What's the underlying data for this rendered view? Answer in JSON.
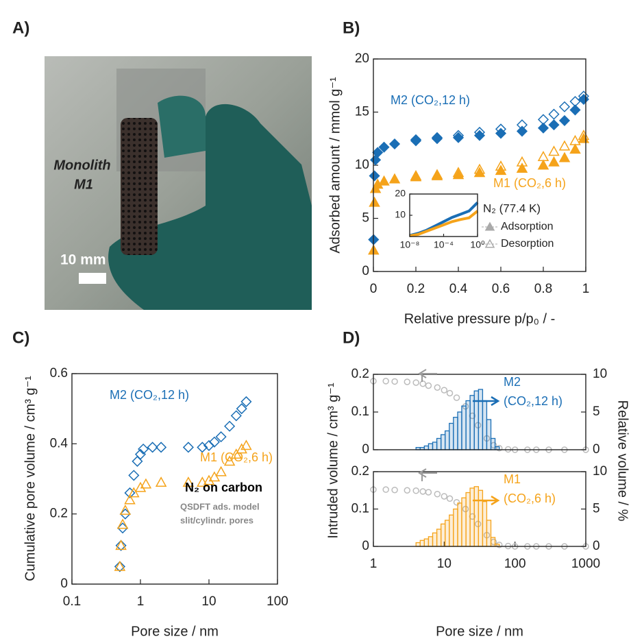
{
  "photo": {
    "label": "A)",
    "caption": [
      "Monolith",
      "M1"
    ],
    "scale_bar": "10 mm"
  },
  "chart_data": [
    {
      "type": "scatter",
      "label": "B)",
      "xlabel": "Relative pressure p/p₀ / -",
      "ylabel": "Adsorbed amount / mmol g⁻¹",
      "xlim": [
        0,
        1
      ],
      "xticks": [
        0,
        0.2,
        0.4,
        0.6,
        0.8,
        1
      ],
      "ylim": [
        0,
        20
      ],
      "yticks": [
        0,
        5,
        10,
        15,
        20
      ],
      "annotations": [
        "M2 (CO₂,12 h)",
        "M1 (CO₂,6 h)"
      ],
      "legend": {
        "title": "N₂ (77.4 K)",
        "entries": [
          "Adsorption",
          "Desorption"
        ],
        "color": "#aaaaaa"
      },
      "series": [
        {
          "color": "#1a6eb5",
          "marker": "diamond",
          "filled": true,
          "x": [
            0.001,
            0.005,
            0.01,
            0.02,
            0.05,
            0.1,
            0.2,
            0.3,
            0.4,
            0.5,
            0.6,
            0.7,
            0.8,
            0.85,
            0.9,
            0.95,
            0.99
          ],
          "values": [
            3,
            9,
            10.5,
            11.2,
            11.7,
            12,
            12.3,
            12.5,
            12.6,
            12.8,
            13,
            13.2,
            13.5,
            13.8,
            14.2,
            15.2,
            16.2
          ]
        },
        {
          "color": "#1a6eb5",
          "marker": "diamond",
          "filled": false,
          "x": [
            0.99,
            0.95,
            0.9,
            0.85,
            0.8,
            0.7,
            0.6,
            0.5,
            0.4,
            0.3,
            0.2
          ],
          "values": [
            16.5,
            16,
            15.5,
            14.8,
            14.3,
            13.8,
            13.4,
            13.1,
            12.8,
            12.6,
            12.4
          ]
        },
        {
          "color": "#f5a31a",
          "marker": "triangle",
          "filled": true,
          "x": [
            0.001,
            0.005,
            0.01,
            0.02,
            0.05,
            0.1,
            0.2,
            0.3,
            0.4,
            0.5,
            0.6,
            0.7,
            0.8,
            0.85,
            0.9,
            0.95,
            0.99
          ],
          "values": [
            2,
            6.5,
            7.8,
            8.2,
            8.5,
            8.7,
            8.9,
            9,
            9.1,
            9.3,
            9.5,
            9.7,
            10,
            10.3,
            10.7,
            11.5,
            12.5
          ]
        },
        {
          "color": "#f5a31a",
          "marker": "triangle",
          "filled": false,
          "x": [
            0.99,
            0.95,
            0.9,
            0.85,
            0.8,
            0.7,
            0.6,
            0.5,
            0.4,
            0.3,
            0.2
          ],
          "values": [
            12.8,
            12.3,
            11.8,
            11.3,
            10.8,
            10.3,
            9.9,
            9.6,
            9.3,
            9.1,
            9
          ]
        }
      ]
    },
    {
      "type": "scatter",
      "xscale": "log",
      "xlim": [
        1e-08,
        1
      ],
      "xticks": [
        {
          "value": 1e-08,
          "label": "10⁻⁸"
        },
        {
          "value": 0.0001,
          "label": "10⁻⁴"
        },
        {
          "value": 1,
          "label": "10⁰"
        }
      ],
      "ylim": [
        0,
        20
      ],
      "yticks": [
        10,
        20
      ],
      "series": [
        {
          "color": "#1a6eb5",
          "marker": "dot",
          "filled": true,
          "x": [
            1e-08,
            1e-07,
            1e-06,
            1e-05,
            0.0001,
            0.001,
            0.01,
            0.1,
            1
          ],
          "values": [
            0.5,
            1.5,
            3,
            5,
            7,
            9,
            10.5,
            12,
            16
          ]
        },
        {
          "color": "#f5a31a",
          "marker": "dot",
          "filled": true,
          "x": [
            1e-08,
            1e-07,
            1e-06,
            1e-05,
            0.0001,
            0.001,
            0.01,
            0.1,
            1
          ],
          "values": [
            0.3,
            1,
            2.5,
            4,
            5.5,
            7,
            8,
            8.8,
            12
          ]
        }
      ]
    },
    {
      "type": "scatter",
      "label": "C)",
      "xlabel": "Pore size / nm",
      "ylabel": "Cumulative pore volume / cm³ g⁻¹",
      "xscale": "log",
      "xlim": [
        0.1,
        100
      ],
      "xticks": [
        0.1,
        1,
        10,
        100
      ],
      "ylim": [
        0,
        0.6
      ],
      "yticks": [
        0,
        0.2,
        0.4,
        0.6
      ],
      "annotations": [
        "M2 (CO₂,12 h)",
        "M1 (CO₂,6 h)",
        "N₂ on carbon",
        "QSDFT ads. model",
        "slit/cylindr. pores"
      ],
      "series": [
        {
          "color": "#1a6eb5",
          "marker": "diamond",
          "filled": false,
          "x": [
            0.5,
            0.52,
            0.55,
            0.6,
            0.7,
            0.8,
            0.9,
            1,
            1.1,
            1.5,
            2,
            5,
            8,
            10,
            12,
            15,
            20,
            25,
            30,
            35
          ],
          "values": [
            0.05,
            0.11,
            0.16,
            0.2,
            0.26,
            0.31,
            0.35,
            0.37,
            0.385,
            0.39,
            0.39,
            0.39,
            0.39,
            0.395,
            0.405,
            0.42,
            0.45,
            0.48,
            0.5,
            0.52
          ]
        },
        {
          "color": "#f5a31a",
          "marker": "triangle",
          "filled": false,
          "x": [
            0.5,
            0.52,
            0.55,
            0.6,
            0.7,
            0.8,
            1,
            1.2,
            2,
            5,
            8,
            10,
            12,
            15,
            20,
            25,
            30,
            35
          ],
          "values": [
            0.05,
            0.11,
            0.17,
            0.21,
            0.24,
            0.26,
            0.275,
            0.285,
            0.29,
            0.29,
            0.29,
            0.295,
            0.305,
            0.32,
            0.35,
            0.37,
            0.385,
            0.395
          ]
        }
      ]
    },
    {
      "type": "histogram",
      "label": "D)",
      "ylabel": "Intruded volume / cm³ g⁻¹",
      "y2label": "Relative volume / %",
      "xscale": "log",
      "xlim": [
        1,
        1000
      ],
      "ylim": [
        0,
        0.2
      ],
      "yticks": [
        0,
        0.1,
        0.2
      ],
      "y2lim": [
        0,
        10
      ],
      "y2ticks": [
        0,
        5,
        10
      ],
      "annotations": [
        "M2",
        "(CO₂,12 h)"
      ],
      "series": [
        {
          "color": "#bbbbbb",
          "marker": "circle",
          "filled": false,
          "x": [
            1,
            1.5,
            2,
            3,
            4,
            5,
            6,
            8,
            10,
            12,
            15,
            20,
            25,
            30,
            40,
            50,
            60,
            80,
            100,
            150,
            200,
            300,
            500,
            1000
          ],
          "values": [
            0.182,
            0.182,
            0.181,
            0.18,
            0.178,
            0.175,
            0.17,
            0.165,
            0.158,
            0.15,
            0.138,
            0.115,
            0.09,
            0.065,
            0.03,
            0.012,
            0.004,
            0.001,
            0,
            0,
            0,
            0,
            0,
            0
          ]
        },
        {
          "color": "#1a6eb5",
          "axis": "y2",
          "bins": [
            4,
            4.58,
            5.24,
            6,
            6.87,
            7.87,
            9.01,
            10.3,
            11.8,
            13.5,
            15.5,
            17.7,
            20.3,
            23.2,
            26.6,
            30.5,
            34.9,
            39.9,
            45.7,
            52.3,
            60
          ],
          "values": [
            0.3,
            0.3,
            0.5,
            0.8,
            1,
            1.5,
            2,
            2.5,
            3.5,
            4.3,
            5,
            5.8,
            6.5,
            7.2,
            7.8,
            8,
            6.5,
            4,
            1.5,
            0.4
          ]
        }
      ]
    },
    {
      "type": "histogram",
      "xlabel": "Pore size / nm",
      "xscale": "log",
      "xlim": [
        1,
        1000
      ],
      "xticks": [
        1,
        10,
        100,
        1000
      ],
      "ylim": [
        0,
        0.2
      ],
      "yticks": [
        0,
        0.1,
        0.2
      ],
      "y2lim": [
        0,
        10
      ],
      "y2ticks": [
        0,
        5,
        10
      ],
      "annotations": [
        "M1",
        "(CO₂,6 h)"
      ],
      "series": [
        {
          "color": "#bbbbbb",
          "marker": "circle",
          "filled": false,
          "x": [
            1,
            1.5,
            2,
            3,
            4,
            5,
            6,
            8,
            10,
            12,
            15,
            20,
            25,
            30,
            40,
            50,
            60,
            80,
            100,
            150,
            200,
            300,
            500,
            1000
          ],
          "values": [
            0.152,
            0.152,
            0.151,
            0.15,
            0.149,
            0.147,
            0.145,
            0.14,
            0.134,
            0.128,
            0.118,
            0.1,
            0.08,
            0.06,
            0.03,
            0.012,
            0.004,
            0.001,
            0,
            0,
            0,
            0,
            0,
            0
          ]
        },
        {
          "color": "#f5a31a",
          "axis": "y2",
          "bins": [
            4,
            4.58,
            5.24,
            6,
            6.87,
            7.87,
            9.01,
            10.3,
            11.8,
            13.5,
            15.5,
            17.7,
            20.3,
            23.2,
            26.6,
            30.5,
            34.9,
            39.9,
            45.7,
            52.3,
            60
          ],
          "values": [
            0.5,
            0.8,
            1,
            1.3,
            1.8,
            2.3,
            3,
            3.5,
            4.2,
            5,
            5.8,
            6.5,
            7.2,
            7.8,
            8,
            7.5,
            6,
            3.5,
            1.2,
            0.3
          ]
        }
      ]
    }
  ]
}
